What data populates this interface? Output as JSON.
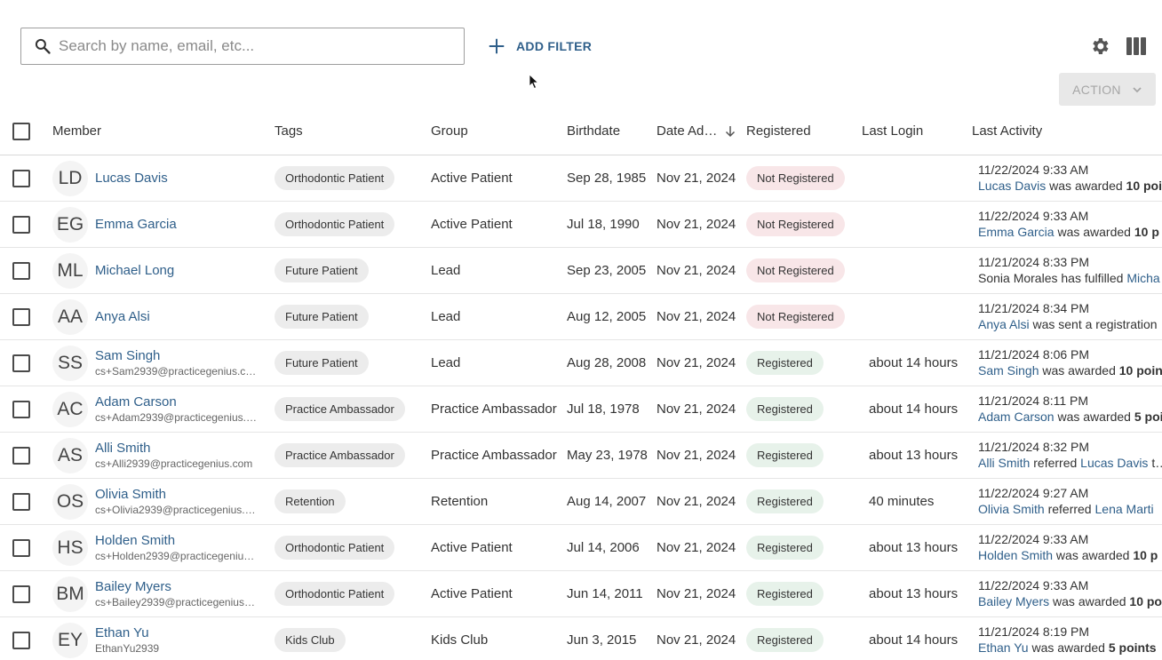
{
  "search": {
    "placeholder": "Search by name, email, etc..."
  },
  "toolbar": {
    "add_filter_label": "ADD FILTER",
    "action_label": "ACTION"
  },
  "table": {
    "headers": {
      "member": "Member",
      "tags": "Tags",
      "group": "Group",
      "birthdate": "Birthdate",
      "date_added": "Date Ad…",
      "registered": "Registered",
      "last_login": "Last Login",
      "last_activity": "Last Activity"
    },
    "rows": [
      {
        "initials": "LD",
        "name": "Lucas Davis",
        "email": "",
        "tag": "Orthodontic Patient",
        "group": "Active Patient",
        "birthdate": "Sep 28, 1985",
        "date_added": "Nov 21, 2024",
        "registered": "Not Registered",
        "last_login": "",
        "activity_time": "11/22/2024 9:33 AM",
        "activity_subject": "Lucas Davis",
        "activity_text": " was awarded ",
        "activity_object": "10 poi",
        "activity_object_style": "strong"
      },
      {
        "initials": "EG",
        "name": "Emma Garcia",
        "email": "",
        "tag": "Orthodontic Patient",
        "group": "Active Patient",
        "birthdate": "Jul 18, 1990",
        "date_added": "Nov 21, 2024",
        "registered": "Not Registered",
        "last_login": "",
        "activity_time": "11/22/2024 9:33 AM",
        "activity_subject": "Emma Garcia",
        "activity_text": " was awarded ",
        "activity_object": "10 p",
        "activity_object_style": "strong"
      },
      {
        "initials": "ML",
        "name": "Michael Long",
        "email": "",
        "tag": "Future Patient",
        "group": "Lead",
        "birthdate": "Sep 23, 2005",
        "date_added": "Nov 21, 2024",
        "registered": "Not Registered",
        "last_login": "",
        "activity_time": "11/21/2024 8:33 PM",
        "activity_subject": "",
        "activity_text": "Sonia Morales has fulfilled ",
        "activity_object": "Micha",
        "activity_object_style": "link"
      },
      {
        "initials": "AA",
        "name": "Anya Alsi",
        "email": "",
        "tag": "Future Patient",
        "group": "Lead",
        "birthdate": "Aug 12, 2005",
        "date_added": "Nov 21, 2024",
        "registered": "Not Registered",
        "last_login": "",
        "activity_time": "11/21/2024 8:34 PM",
        "activity_subject": "Anya Alsi",
        "activity_text": " was sent a registration",
        "activity_object": "",
        "activity_object_style": ""
      },
      {
        "initials": "SS",
        "name": "Sam Singh",
        "email": "cs+Sam2939@practicegenius.c…",
        "tag": "Future Patient",
        "group": "Lead",
        "birthdate": "Aug 28, 2008",
        "date_added": "Nov 21, 2024",
        "registered": "Registered",
        "last_login": "about 14 hours",
        "activity_time": "11/21/2024 8:06 PM",
        "activity_subject": "Sam Singh",
        "activity_text": " was awarded ",
        "activity_object": "10 poin",
        "activity_object_style": "strong"
      },
      {
        "initials": "AC",
        "name": "Adam Carson",
        "email": "cs+Adam2939@practicegenius.…",
        "tag": "Practice Ambassador",
        "group": "Practice Ambassador",
        "birthdate": "Jul 18, 1978",
        "date_added": "Nov 21, 2024",
        "registered": "Registered",
        "last_login": "about 14 hours",
        "activity_time": "11/21/2024 8:11 PM",
        "activity_subject": "Adam Carson",
        "activity_text": " was awarded ",
        "activity_object": "5 poi",
        "activity_object_style": "strong"
      },
      {
        "initials": "AS",
        "name": "Alli Smith",
        "email": "cs+Alli2939@practicegenius.com",
        "tag": "Practice Ambassador",
        "group": "Practice Ambassador",
        "birthdate": "May 23, 1978",
        "date_added": "Nov 21, 2024",
        "registered": "Registered",
        "last_login": "about 13 hours",
        "activity_time": "11/21/2024 8:32 PM",
        "activity_subject": "Alli Smith",
        "activity_text": " referred ",
        "activity_object": "Lucas Davis",
        "activity_tail": " t…",
        "activity_object_style": "link"
      },
      {
        "initials": "OS",
        "name": "Olivia Smith",
        "email": "cs+Olivia2939@practicegenius.…",
        "tag": "Retention",
        "group": "Retention",
        "birthdate": "Aug 14, 2007",
        "date_added": "Nov 21, 2024",
        "registered": "Registered",
        "last_login": "40 minutes",
        "activity_time": "11/22/2024 9:27 AM",
        "activity_subject": "Olivia Smith",
        "activity_text": " referred ",
        "activity_object": "Lena Marti",
        "activity_object_style": "link"
      },
      {
        "initials": "HS",
        "name": "Holden Smith",
        "email": "cs+Holden2939@practicegeniu…",
        "tag": "Orthodontic Patient",
        "group": "Active Patient",
        "birthdate": "Jul 14, 2006",
        "date_added": "Nov 21, 2024",
        "registered": "Registered",
        "last_login": "about 13 hours",
        "activity_time": "11/22/2024 9:33 AM",
        "activity_subject": "Holden Smith",
        "activity_text": " was awarded ",
        "activity_object": "10 p",
        "activity_object_style": "strong"
      },
      {
        "initials": "BM",
        "name": "Bailey Myers",
        "email": "cs+Bailey2939@practicegenius…",
        "tag": "Orthodontic Patient",
        "group": "Active Patient",
        "birthdate": "Jun 14, 2011",
        "date_added": "Nov 21, 2024",
        "registered": "Registered",
        "last_login": "about 13 hours",
        "activity_time": "11/22/2024 9:33 AM",
        "activity_subject": "Bailey Myers",
        "activity_text": " was awarded ",
        "activity_object": "10 po",
        "activity_object_style": "strong"
      },
      {
        "initials": "EY",
        "name": "Ethan Yu",
        "email": "EthanYu2939",
        "tag": "Kids Club",
        "group": "Kids Club",
        "birthdate": "Jun 3, 2015",
        "date_added": "Nov 21, 2024",
        "registered": "Registered",
        "last_login": "about 14 hours",
        "activity_time": "11/21/2024 8:19 PM",
        "activity_subject": "Ethan Yu",
        "activity_text": " was awarded ",
        "activity_object": "5 points",
        "activity_object_style": "strong"
      }
    ]
  },
  "colors": {
    "link": "#2f5f8a",
    "not_registered_bg": "#f8e6e8",
    "registered_bg": "#e7f2ea"
  },
  "icons": [
    "search-icon",
    "plus-icon",
    "gear-icon",
    "columns-icon",
    "chevron-down-icon",
    "sort-down-icon",
    "cursor-icon"
  ]
}
